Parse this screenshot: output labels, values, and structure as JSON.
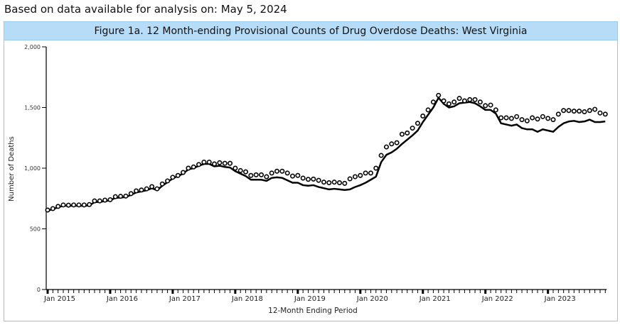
{
  "header": "Based on data available for analysis on: May 5, 2024",
  "chart_data": {
    "type": "line",
    "title": "Figure 1a. 12 Month-ending Provisional Counts of Drug Overdose Deaths: West Virginia",
    "xlabel": "12-Month Ending Period",
    "ylabel": "Number of Deaths",
    "ylim": [
      0,
      2000
    ],
    "yticks": [
      "0",
      "500",
      "1,000",
      "1,500",
      "2,000"
    ],
    "ytick_values": [
      0,
      500,
      1000,
      1500,
      2000
    ],
    "x_start": "Jan 2015",
    "x_end": "Dec 2023",
    "xticks": [
      "Jan 2015",
      "Jan 2016",
      "Jan 2017",
      "Jan 2018",
      "Jan 2019",
      "Jan 2020",
      "Jan 2021",
      "Jan 2022",
      "Jan 2023"
    ],
    "grid": false,
    "series": [
      {
        "style": "line",
        "color": "#000000",
        "values": [
          650,
          662,
          678,
          690,
          690,
          690,
          690,
          690,
          692,
          720,
          722,
          728,
          735,
          755,
          758,
          762,
          780,
          800,
          808,
          818,
          835,
          818,
          855,
          885,
          915,
          935,
          955,
          990,
          1000,
          1020,
          1035,
          1035,
          1015,
          1020,
          1010,
          1005,
          975,
          955,
          935,
          905,
          905,
          905,
          895,
          920,
          925,
          920,
          900,
          880,
          880,
          860,
          855,
          860,
          845,
          835,
          825,
          830,
          825,
          820,
          825,
          845,
          860,
          880,
          905,
          930,
          1050,
          1110,
          1130,
          1160,
          1200,
          1235,
          1270,
          1310,
          1380,
          1440,
          1500,
          1580,
          1530,
          1500,
          1510,
          1535,
          1540,
          1545,
          1535,
          1510,
          1480,
          1480,
          1450,
          1370,
          1360,
          1350,
          1360,
          1330,
          1320,
          1320,
          1300,
          1320,
          1310,
          1300,
          1340,
          1370,
          1385,
          1390,
          1380,
          1385,
          1400,
          1380,
          1380,
          1385
        ]
      },
      {
        "style": "open-circles",
        "color": "#000000",
        "values": [
          655,
          667,
          685,
          697,
          695,
          697,
          697,
          697,
          700,
          730,
          730,
          737,
          740,
          765,
          768,
          770,
          790,
          813,
          820,
          830,
          848,
          830,
          870,
          895,
          925,
          940,
          965,
          1000,
          1010,
          1030,
          1050,
          1050,
          1035,
          1045,
          1040,
          1040,
          1000,
          980,
          970,
          940,
          945,
          945,
          930,
          960,
          975,
          975,
          960,
          935,
          940,
          918,
          908,
          910,
          900,
          885,
          880,
          885,
          880,
          875,
          912,
          930,
          940,
          960,
          960,
          1000,
          1105,
          1175,
          1200,
          1210,
          1280,
          1290,
          1330,
          1370,
          1430,
          1480,
          1545,
          1600,
          1555,
          1530,
          1545,
          1575,
          1555,
          1565,
          1565,
          1545,
          1515,
          1520,
          1480,
          1415,
          1415,
          1410,
          1425,
          1400,
          1390,
          1415,
          1405,
          1425,
          1410,
          1400,
          1445,
          1475,
          1475,
          1470,
          1470,
          1465,
          1475,
          1485,
          1455,
          1445
        ]
      }
    ]
  }
}
